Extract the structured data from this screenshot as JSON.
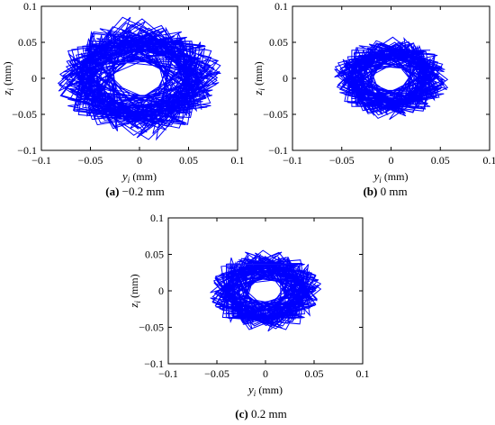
{
  "chart_data": [
    {
      "type": "line",
      "xlabel_var": "y",
      "xlabel_sub": "i",
      "xlabel_unit": "(mm)",
      "ylabel_var": "z",
      "ylabel_sub": "i",
      "ylabel_unit": "(mm)",
      "xlim": [
        -0.1,
        0.1
      ],
      "ylim": [
        -0.1,
        0.1
      ],
      "xticks": [
        "-0.1",
        "-0.05",
        "0",
        "0.05",
        "0.1"
      ],
      "yticks": [
        "0.1",
        "0.05",
        "0",
        "-0.05",
        "-0.1"
      ],
      "caption_tag": "(a)",
      "caption_text": " −0.2 mm",
      "series_color": "#0000ff",
      "orbit": {
        "radius_inner": 0.03,
        "radius_outer": 0.085,
        "turns": 95,
        "rotation_step": 2.31,
        "vertices": 4
      }
    },
    {
      "type": "line",
      "xlabel_var": "y",
      "xlabel_sub": "i",
      "xlabel_unit": "(mm)",
      "ylabel_var": "z",
      "ylabel_sub": "i",
      "ylabel_unit": "(mm)",
      "xlim": [
        -0.1,
        0.1
      ],
      "ylim": [
        -0.1,
        0.1
      ],
      "xticks": [
        "-0.1",
        "-0.05",
        "0",
        "0.05",
        "0.1"
      ],
      "yticks": [
        "0.1",
        "0.05",
        "0",
        "-0.05",
        "-0.1"
      ],
      "caption_tag": "(b)",
      "caption_text": " 0 mm",
      "series_color": "#0000ff",
      "orbit": {
        "radius_inner": 0.02,
        "radius_outer": 0.06,
        "turns": 80,
        "rotation_step": 2.31,
        "vertices": 4
      }
    },
    {
      "type": "line",
      "xlabel_var": "y",
      "xlabel_sub": "i",
      "xlabel_unit": "(mm)",
      "ylabel_var": "z",
      "ylabel_sub": "i",
      "ylabel_unit": "(mm)",
      "xlim": [
        -0.1,
        0.1
      ],
      "ylim": [
        -0.1,
        0.1
      ],
      "xticks": [
        "-0.1",
        "-0.05",
        "0",
        "0.05",
        "0.1"
      ],
      "yticks": [
        "0.1",
        "0.05",
        "0",
        "-0.05",
        "-0.1"
      ],
      "caption_tag": "(c)",
      "caption_text": " 0.2 mm",
      "series_color": "#0000ff",
      "orbit": {
        "radius_inner": 0.02,
        "radius_outer": 0.058,
        "turns": 80,
        "rotation_step": 2.31,
        "vertices": 4
      }
    }
  ]
}
